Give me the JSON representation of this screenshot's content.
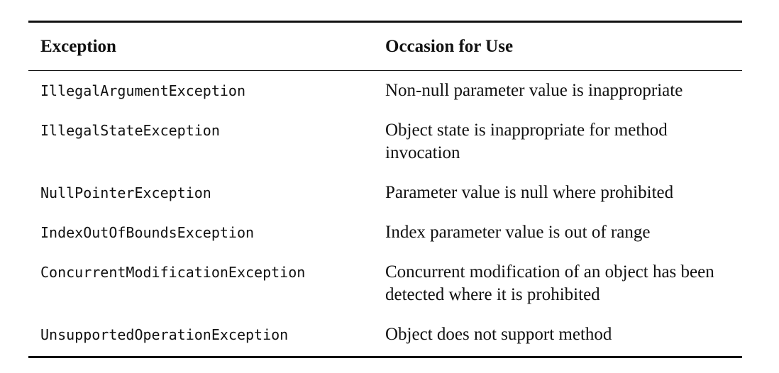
{
  "table": {
    "headers": {
      "exception": "Exception",
      "occasion": "Occasion for Use"
    },
    "rows": [
      {
        "exception": "IllegalArgumentException",
        "occasion": "Non-null parameter value is inappropriate"
      },
      {
        "exception": "IllegalStateException",
        "occasion": "Object state is inappropriate for method invocation"
      },
      {
        "exception": "NullPointerException",
        "occasion": "Parameter value is null where prohibited"
      },
      {
        "exception": "IndexOutOfBoundsException",
        "occasion": "Index parameter value is out of range"
      },
      {
        "exception": "ConcurrentModificationException",
        "occasion": "Concurrent modification of an object has been detected where it is prohibited"
      },
      {
        "exception": "UnsupportedOperationException",
        "occasion": "Object does not support method"
      }
    ]
  }
}
